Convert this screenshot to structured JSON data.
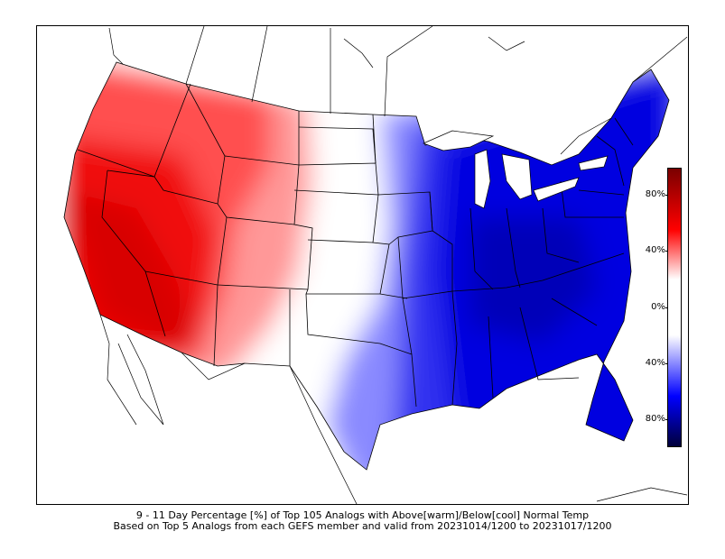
{
  "map": {
    "caption_line1": "9 - 11 Day Percentage [%] of Top 105 Analogs with Above[warm]/Below[cool] Normal Temp",
    "caption_line2": "Based on Top 5 Analogs from each GEFS member and valid from 20231014/1200 to 20231017/1200",
    "warm_color": "#e00000",
    "cool_color": "#0000e0"
  },
  "colorbar": {
    "ticks": [
      "80%",
      "40%",
      "0%",
      "40%",
      "80%"
    ],
    "colors": [
      "#7a0000",
      "#ff0000",
      "#ffffff",
      "#0000ff",
      "#00003a"
    ]
  }
}
